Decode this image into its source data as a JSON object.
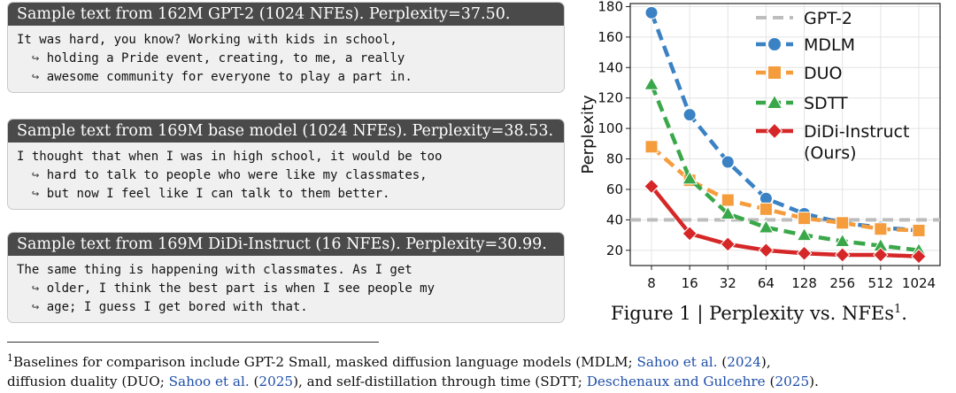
{
  "samples": [
    {
      "header": "Sample text from 162M GPT-2 (1024 NFEs). Perplexity=37.50.",
      "lines": [
        "It was hard, you know? Working with kids in school,",
        "holding a Pride event, creating, to me, a really",
        "awesome community for everyone to play a part in."
      ]
    },
    {
      "header": "Sample text from 169M base model (1024 NFEs). Perplexity=38.53.",
      "lines": [
        "I thought that when I was in high school, it would be too",
        "hard to talk to people who were like my classmates,",
        "but now I feel like I can talk to them better."
      ]
    },
    {
      "header": "Sample text from 169M DiDi-Instruct (16 NFEs). Perplexity=30.99.",
      "lines": [
        "The same thing is happening with classmates. As I get",
        "older, I think the best part is when I see people my",
        "age; I guess I get bored with that."
      ]
    }
  ],
  "wrap_glyph": "↪",
  "caption": {
    "text": "Figure 1 | Perplexity vs. NFEs",
    "sup": "1",
    "end": "."
  },
  "footnote": {
    "mark": "1",
    "line1_a": "Baselines for comparison include GPT-2 Small, masked diffusion language models (MDLM; ",
    "cite1": "Sahoo et al.",
    "year1": "2024",
    "line1_b": "),",
    "line2_a": "diffusion duality (DUO; ",
    "cite2": "Sahoo et al.",
    "year2": "2025",
    "line2_b": "), and self-distillation through time (SDTT; ",
    "cite3": "Deschenaux and Gulcehre",
    "year3": "2025",
    "line2_c": ")."
  },
  "chart_data": {
    "type": "line",
    "ylabel": "Perplexity",
    "xlabel": "",
    "categories": [
      "8",
      "16",
      "32",
      "64",
      "128",
      "256",
      "512",
      "1024"
    ],
    "x_scale": "log2",
    "ylim": [
      10,
      182
    ],
    "yticks": [
      20,
      40,
      60,
      80,
      100,
      120,
      140,
      160,
      180
    ],
    "grid": true,
    "legend_position": "top-right",
    "reference_line": {
      "name": "GPT-2",
      "value": 40,
      "color": "#bdbdbd"
    },
    "series": [
      {
        "name": "MDLM",
        "color": "#3b82c4",
        "marker": "circle",
        "dash": true,
        "values": [
          176,
          109,
          78,
          54,
          44,
          38,
          35,
          33
        ]
      },
      {
        "name": "DUO",
        "color": "#f59c3c",
        "marker": "square",
        "dash": true,
        "values": [
          88,
          66,
          53,
          47,
          41,
          38,
          34,
          33
        ]
      },
      {
        "name": "SDTT",
        "color": "#3aa84a",
        "marker": "triangle",
        "dash": true,
        "values": [
          129,
          67,
          44,
          35,
          30,
          26,
          23,
          20
        ]
      },
      {
        "name": "DiDi-Instruct (Ours)",
        "label_lines": [
          "DiDi-Instruct",
          "(Ours)"
        ],
        "color": "#d62728",
        "marker": "diamond",
        "dash": false,
        "values": [
          62,
          31,
          24,
          20,
          18,
          17,
          17,
          16
        ]
      }
    ]
  }
}
